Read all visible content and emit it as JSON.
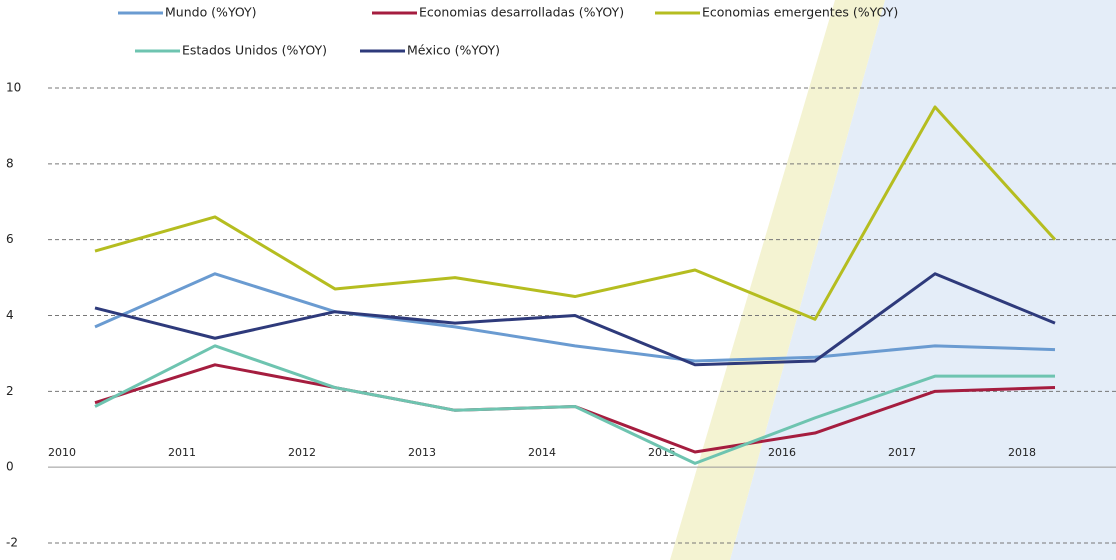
{
  "chart_data": {
    "type": "line",
    "categories": [
      "2010",
      "2011",
      "2012",
      "2013",
      "2014",
      "2015",
      "2016",
      "2017",
      "2018"
    ],
    "series": [
      {
        "name": "Mundo (%YOY)",
        "color": "#6a9bd1",
        "values": [
          3.7,
          5.1,
          4.1,
          3.7,
          3.2,
          2.8,
          2.9,
          3.2,
          3.1
        ]
      },
      {
        "name": "Economias desarrolladas (%YOY)",
        "color": "#a51d3f",
        "values": [
          1.7,
          2.7,
          2.1,
          1.5,
          1.6,
          0.4,
          0.9,
          2.0,
          2.1
        ]
      },
      {
        "name": "Economias emergentes  (%YOY)",
        "color": "#b5bd20",
        "values": [
          5.7,
          6.6,
          4.7,
          5.0,
          4.5,
          5.2,
          3.9,
          9.5,
          6.0
        ]
      },
      {
        "name": "Estados Unidos  (%YOY)",
        "color": "#6ec4b0",
        "values": [
          1.6,
          3.2,
          2.1,
          1.5,
          1.6,
          0.1,
          1.3,
          2.4,
          2.4
        ]
      },
      {
        "name": "México  (%YOY)",
        "color": "#2e3a7b",
        "values": [
          4.2,
          3.4,
          4.1,
          3.8,
          4.0,
          2.7,
          2.8,
          5.1,
          3.8
        ]
      }
    ],
    "ylim": [
      -2,
      10
    ],
    "yticks": [
      -2,
      0,
      2,
      4,
      6,
      8,
      10
    ],
    "grid": true
  }
}
